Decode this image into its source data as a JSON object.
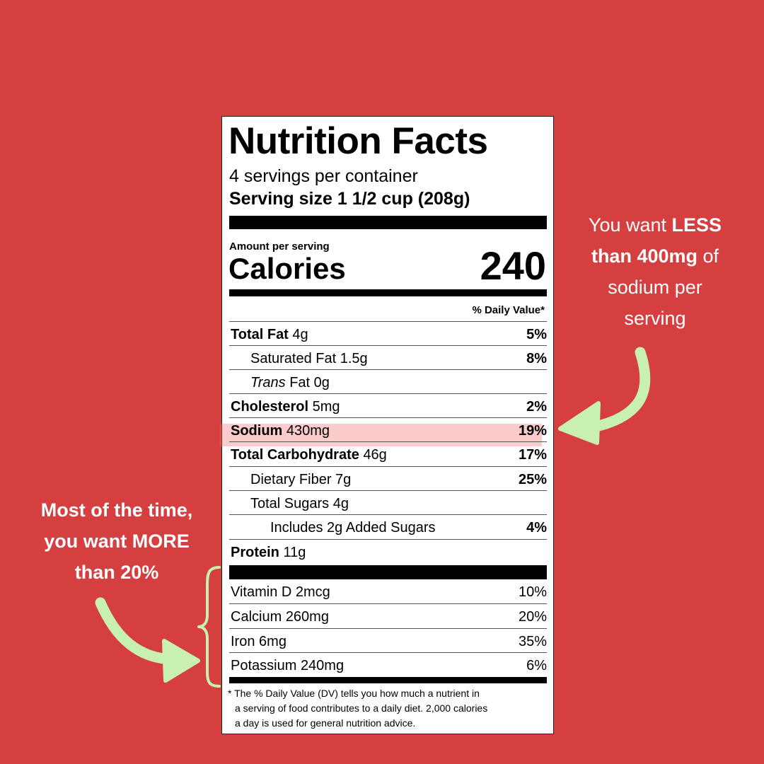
{
  "label": {
    "title": "Nutrition Facts",
    "servings": "4 servings per container",
    "serving_size": "Serving size 1 1/2 cup (208g)",
    "amount_per_serving": "Amount per serving",
    "calories_label": "Calories",
    "calories_value": "240",
    "daily_value_header": "% Daily Value*",
    "nutrients": [
      {
        "name": "Total Fat",
        "amount": "4g",
        "dv": "5%"
      },
      {
        "name": "Saturated Fat",
        "amount": "1.5g",
        "dv": "8%"
      },
      {
        "name": "Trans",
        "amount": "Fat 0g",
        "dv": ""
      },
      {
        "name": "Cholesterol",
        "amount": "5mg",
        "dv": "2%"
      },
      {
        "name": "Sodium",
        "amount": "430mg",
        "dv": "19%"
      },
      {
        "name": "Total Carbohydrate",
        "amount": "46g",
        "dv": "17%"
      },
      {
        "name": "Dietary Fiber",
        "amount": "7g",
        "dv": "25%"
      },
      {
        "name": "Total Sugars",
        "amount": "4g",
        "dv": ""
      },
      {
        "name": "Includes 2g Added Sugars",
        "amount": "",
        "dv": "4%"
      },
      {
        "name": "Protein",
        "amount": "11g",
        "dv": ""
      }
    ],
    "vitamins": [
      {
        "name": "Vitamin D",
        "amount": "2mcg",
        "dv": "10%"
      },
      {
        "name": "Calcium",
        "amount": "260mg",
        "dv": "20%"
      },
      {
        "name": "Iron",
        "amount": "6mg",
        "dv": "35%"
      },
      {
        "name": "Potassium",
        "amount": "240mg",
        "dv": "6%"
      }
    ],
    "footnote": {
      "line1": "* The % Daily Value (DV) tells you how much a nutrient in",
      "line2": "a serving of food contributes to a daily diet. 2,000 calories",
      "line3": "a day is used for general nutrition advice."
    }
  },
  "annotations": {
    "right": {
      "line1_pre": "You want ",
      "line1_bold": "LESS",
      "line2_bold": "than 400mg",
      "line2_post": " of",
      "line3": "sodium per",
      "line4": "serving"
    },
    "left": {
      "line1": "Most of the time,",
      "line2": "you want MORE",
      "line3": "than 20%"
    }
  },
  "colors": {
    "background": "#d53f40",
    "arrow": "#c8f0b0",
    "highlight": "#f56e6e"
  }
}
